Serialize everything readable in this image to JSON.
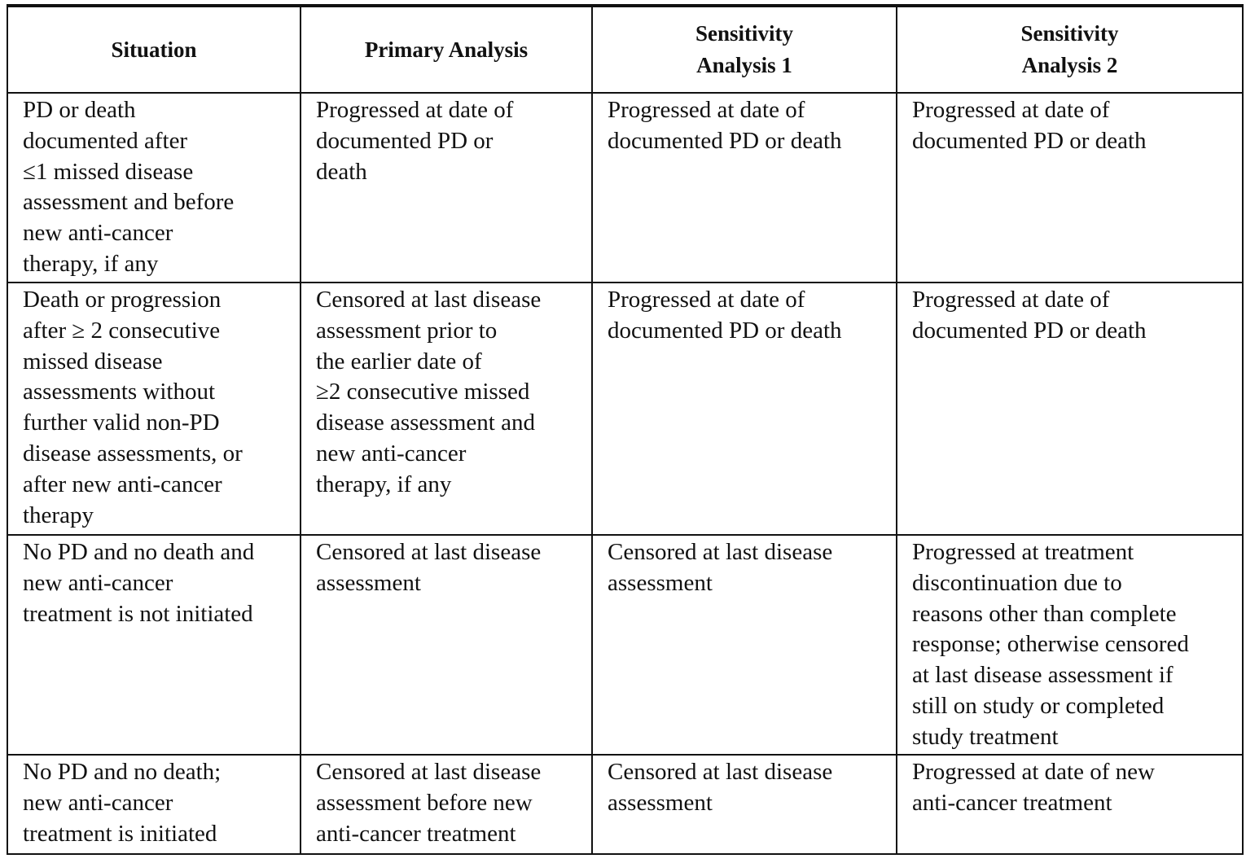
{
  "table": {
    "headers": [
      "Situation",
      "Primary Analysis",
      "Sensitivity\nAnalysis 1",
      "Sensitivity\nAnalysis 2"
    ],
    "rows": [
      [
        "PD or death\ndocumented after\n≤1 missed disease\nassessment and before\nnew anti-cancer\ntherapy, if any",
        "Progressed at date of\ndocumented PD or\ndeath",
        "Progressed at date of\ndocumented PD or death",
        "Progressed at date of\ndocumented PD or death"
      ],
      [
        "Death or progression\nafter ≥ 2 consecutive\nmissed disease\nassessments without\nfurther valid non-PD\ndisease assessments, or\nafter new anti-cancer\ntherapy",
        "Censored at last disease\nassessment prior to\nthe earlier date of\n≥2 consecutive missed\ndisease assessment and\nnew anti-cancer\ntherapy, if any",
        "Progressed at date of\ndocumented PD or death",
        "Progressed at date of\ndocumented PD or death"
      ],
      [
        "No PD and no death and\nnew anti-cancer\ntreatment is not initiated",
        "Censored at last disease\nassessment",
        "Censored at last disease\nassessment",
        "Progressed at treatment\ndiscontinuation due to\nreasons other than complete\nresponse; otherwise censored\nat last disease assessment if\nstill on study or completed\nstudy treatment"
      ],
      [
        "No PD and no death;\nnew anti-cancer\ntreatment is initiated",
        "Censored at last disease\nassessment before new\nanti-cancer treatment",
        "Censored at last disease\nassessment",
        "Progressed at date of new\nanti-cancer treatment"
      ]
    ]
  }
}
